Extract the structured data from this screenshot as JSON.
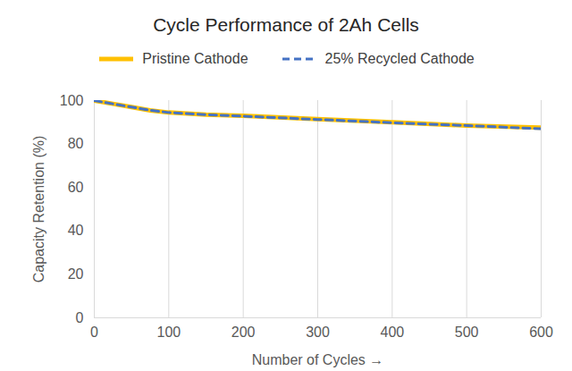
{
  "chart_data": {
    "type": "line",
    "title": "Cycle Performance of 2Ah Cells",
    "x_label": "Number of Cycles",
    "y_label": "Capacity Retention (%)",
    "x": [
      0,
      25,
      50,
      75,
      100,
      150,
      200,
      300,
      400,
      500,
      600
    ],
    "series": [
      {
        "name": "Pristine Cathode",
        "color": "#FFC000",
        "line_style": "solid",
        "values": [
          100,
          98.5,
          97,
          95.5,
          94.5,
          93.5,
          93,
          91.5,
          90,
          88.5,
          87.5
        ]
      },
      {
        "name": "25% Recycled Cathode",
        "color": "#4472C4",
        "line_style": "dashed",
        "values": [
          100,
          98.5,
          97,
          95.5,
          94.5,
          93.5,
          92.8,
          91.3,
          89.8,
          88.5,
          87
        ]
      }
    ],
    "xlim": [
      0,
      600
    ],
    "xticks": [
      0,
      100,
      200,
      300,
      400,
      500,
      600
    ],
    "ylim": [
      0,
      100
    ],
    "yticks": [
      0,
      20,
      40,
      60,
      80,
      100
    ],
    "grid": true,
    "legend": "top"
  }
}
